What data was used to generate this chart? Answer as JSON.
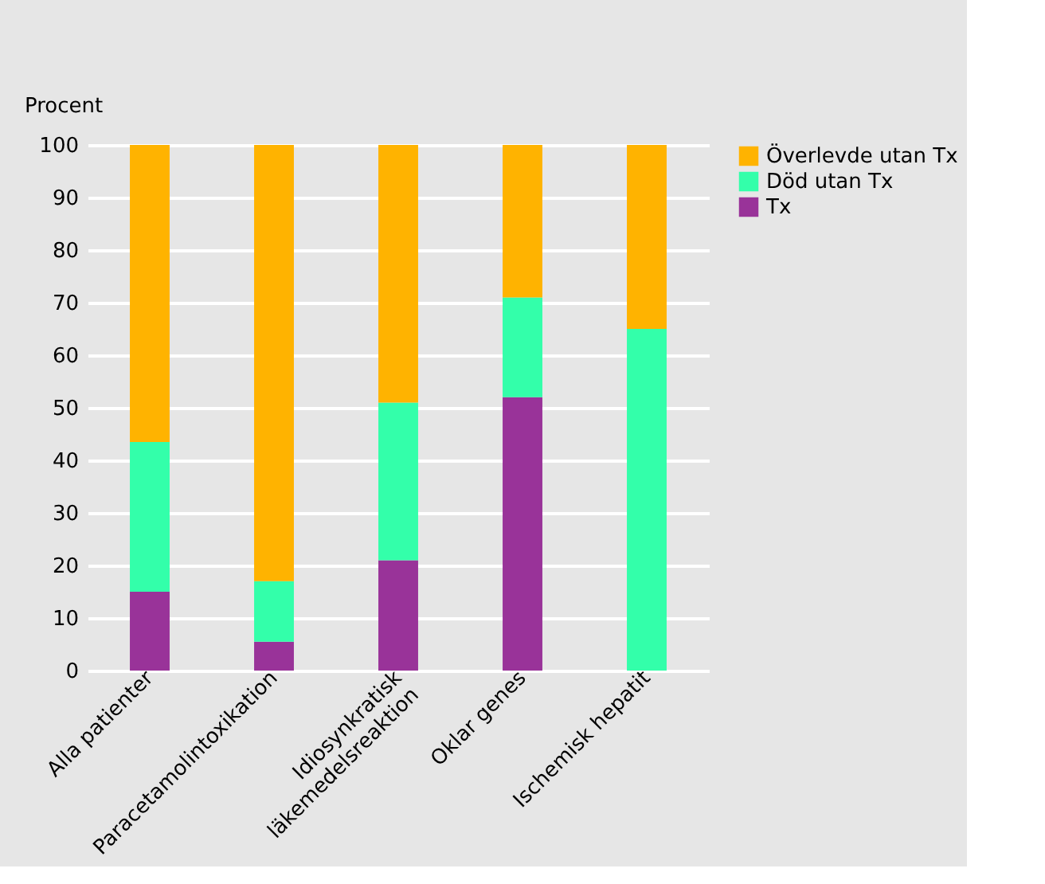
{
  "chart_data": {
    "type": "bar",
    "stacked": true,
    "ylabel": "Procent",
    "categories": [
      "Alla patienter",
      "Paracetamolintoxikation",
      "Idiosynkratisk\nläkemedelsreaktion",
      "Oklar genes",
      "Ischemisk hepatit"
    ],
    "series": [
      {
        "name": "Tx",
        "color": "#993399",
        "values": [
          15,
          5.5,
          21,
          52,
          0
        ]
      },
      {
        "name": "Död utan Tx",
        "color": "#33ffaa",
        "values": [
          28.5,
          11.5,
          30,
          19,
          65
        ]
      },
      {
        "name": "Överlevde utan Tx",
        "color": "#ffb300",
        "values": [
          56.5,
          83,
          49,
          29,
          35
        ]
      }
    ],
    "ylim": [
      0,
      100
    ],
    "yticks": [
      0,
      10,
      20,
      30,
      40,
      50,
      60,
      70,
      80,
      90,
      100
    ],
    "grid": "y",
    "legend": "top right"
  }
}
